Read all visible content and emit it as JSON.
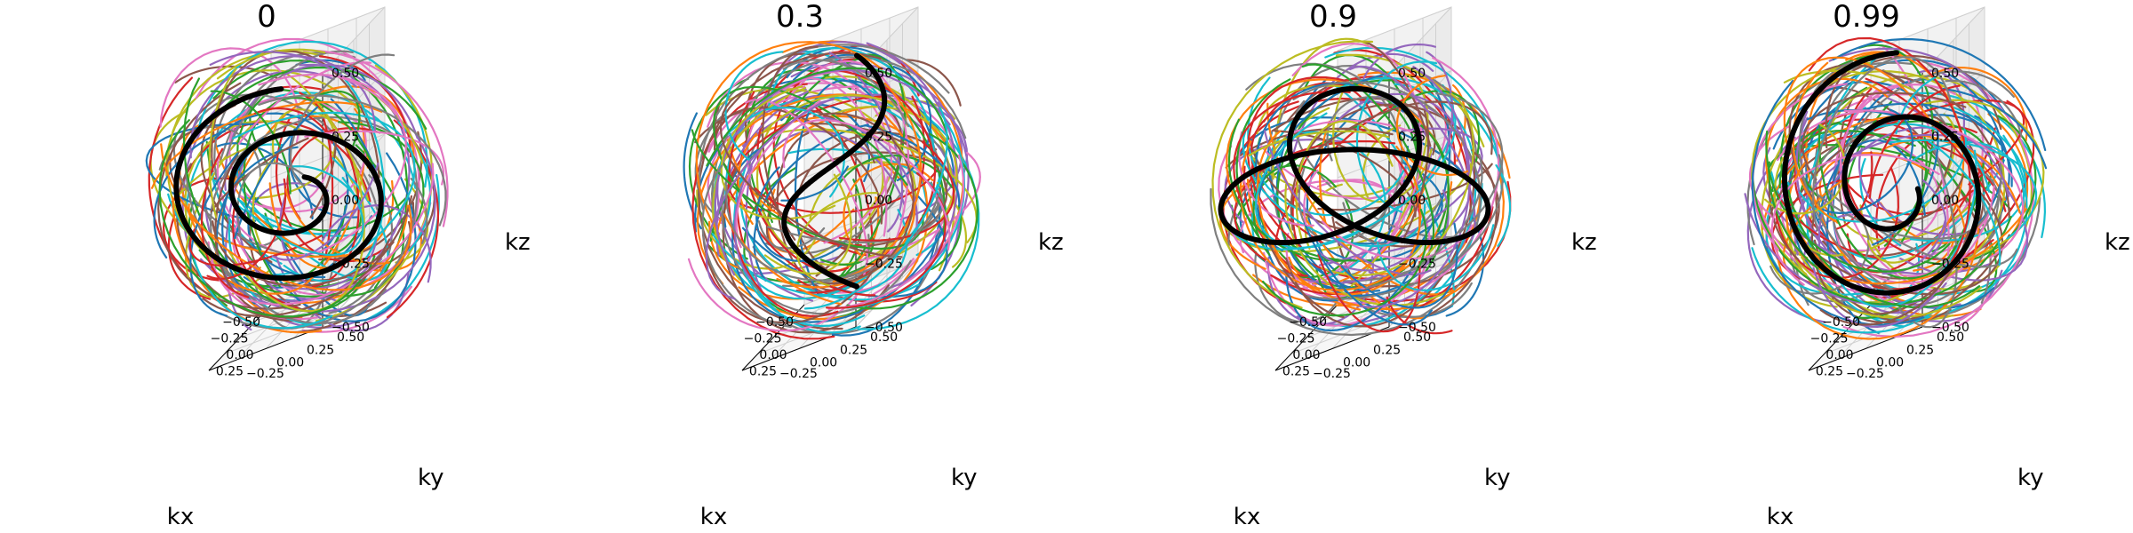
{
  "chart_data": [
    {
      "type": "line3d",
      "title": "0",
      "xlabel": "kx",
      "ylabel": "ky",
      "zlabel": "kz",
      "xlim": [
        -0.5,
        0.5
      ],
      "ylim": [
        -0.5,
        0.5
      ],
      "zlim": [
        -0.5,
        0.5
      ],
      "xticks": [
        "−0.50",
        "−0.25",
        "0.00",
        "0.25"
      ],
      "yticks": [
        "−0.25",
        "0.00",
        "0.25",
        "0.50"
      ],
      "zticks": [
        "−0.50",
        "−0.25",
        "0.00",
        "0.25",
        "0.50"
      ],
      "grid": true,
      "background_series": {
        "count": 160,
        "radius": 0.45,
        "style": "colored arcs on sphere surface"
      },
      "highlight_series": {
        "color": "#000000",
        "shape": "spiral",
        "start_angle_deg": 95,
        "end_angle_deg": 780,
        "loops": 1.9
      }
    },
    {
      "type": "line3d",
      "title": "0.3",
      "xlabel": "kx",
      "ylabel": "ky",
      "zlabel": "kz",
      "xlim": [
        -0.5,
        0.5
      ],
      "ylim": [
        -0.5,
        0.5
      ],
      "zlim": [
        -0.5,
        0.5
      ],
      "xticks": [
        "−0.50",
        "−0.25",
        "0.00",
        "0.25"
      ],
      "yticks": [
        "−0.25",
        "0.00",
        "0.25",
        "0.50"
      ],
      "zticks": [
        "−0.50",
        "−0.25",
        "0.00",
        "0.25",
        "0.50"
      ],
      "grid": true,
      "background_series": {
        "count": 160,
        "radius": 0.45,
        "style": "colored arcs on sphere surface"
      },
      "highlight_series": {
        "color": "#000000",
        "shape": "narrow loop",
        "start_angle_deg": 0,
        "end_angle_deg": 360,
        "loops": 1
      }
    },
    {
      "type": "line3d",
      "title": "0.9",
      "xlabel": "kx",
      "ylabel": "ky",
      "zlabel": "kz",
      "xlim": [
        -0.5,
        0.5
      ],
      "ylim": [
        -0.5,
        0.5
      ],
      "zlim": [
        -0.5,
        0.5
      ],
      "xticks": [
        "−0.50",
        "−0.25",
        "0.00",
        "0.25"
      ],
      "yticks": [
        "−0.25",
        "0.00",
        "0.25",
        "0.50"
      ],
      "zticks": [
        "−0.50",
        "−0.25",
        "0.00",
        "0.25",
        "0.50"
      ],
      "grid": true,
      "background_series": {
        "count": 160,
        "radius": 0.45,
        "style": "colored arcs on sphere surface"
      },
      "highlight_series": {
        "color": "#000000",
        "shape": "trefoil knot",
        "start_angle_deg": 0,
        "end_angle_deg": 360,
        "loops": 3
      }
    },
    {
      "type": "line3d",
      "title": "0.99",
      "xlabel": "kx",
      "ylabel": "ky",
      "zlabel": "kz",
      "xlim": [
        -0.5,
        0.5
      ],
      "ylim": [
        -0.5,
        0.5
      ],
      "zlim": [
        -0.5,
        0.5
      ],
      "xticks": [
        "−0.50",
        "−0.25",
        "0.00",
        "0.25"
      ],
      "yticks": [
        "−0.25",
        "0.00",
        "0.25",
        "0.50"
      ],
      "zticks": [
        "−0.50",
        "−0.25",
        "0.00",
        "0.25",
        "0.50"
      ],
      "grid": true,
      "background_series": {
        "count": 180,
        "radius": 0.46,
        "style": "colored arcs on sphere surface"
      },
      "highlight_series": {
        "color": "#000000",
        "shape": "large spiral with end loops",
        "start_angle_deg": 90,
        "end_angle_deg": 720,
        "loops": 2
      }
    }
  ],
  "palette": [
    "#1f77b4",
    "#ff7f0e",
    "#2ca02c",
    "#d62728",
    "#9467bd",
    "#8c564b",
    "#e377c2",
    "#7f7f7f",
    "#bcbd22",
    "#17becf"
  ]
}
